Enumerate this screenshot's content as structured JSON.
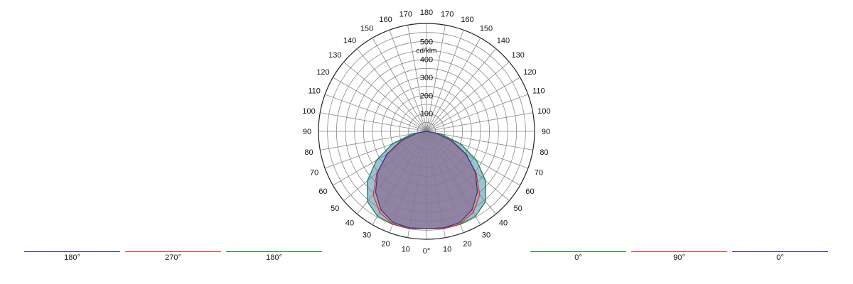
{
  "chart_data": {
    "type": "polar",
    "unit": "cd/klm",
    "radial_ticks": [
      100,
      200,
      300,
      400,
      500
    ],
    "rmax": 600,
    "angle_tick_labels": {
      "left": [
        "0°",
        "10",
        "20",
        "30",
        "40",
        "50",
        "60",
        "70",
        "80",
        "90",
        "100",
        "110",
        "120",
        "130",
        "140",
        "150",
        "160",
        "170",
        "180"
      ],
      "right": [
        "10",
        "20",
        "30",
        "40",
        "50",
        "60",
        "70",
        "80",
        "90",
        "100",
        "110",
        "120",
        "130",
        "140",
        "150",
        "160",
        "170"
      ]
    },
    "series": [
      {
        "color": "#4a8fb0",
        "stroke": "#1a7a3a",
        "profile": [
          [
            0,
            540
          ],
          [
            10,
            545
          ],
          [
            20,
            550
          ],
          [
            30,
            545
          ],
          [
            40,
            510
          ],
          [
            50,
            430
          ],
          [
            60,
            320
          ],
          [
            70,
            200
          ],
          [
            80,
            80
          ],
          [
            90,
            0
          ]
        ]
      },
      {
        "color": "#e08a8a",
        "stroke": "#e03030",
        "profile": [
          [
            0,
            540
          ],
          [
            10,
            550
          ],
          [
            20,
            548
          ],
          [
            30,
            520
          ],
          [
            40,
            460
          ],
          [
            50,
            360
          ],
          [
            60,
            250
          ],
          [
            70,
            135
          ],
          [
            80,
            50
          ],
          [
            90,
            0
          ]
        ]
      },
      {
        "color": "#6a6a9a",
        "stroke": "#2a3a8a",
        "profile": [
          [
            0,
            540
          ],
          [
            10,
            545
          ],
          [
            20,
            540
          ],
          [
            30,
            505
          ],
          [
            40,
            440
          ],
          [
            50,
            355
          ],
          [
            60,
            255
          ],
          [
            70,
            150
          ],
          [
            80,
            55
          ],
          [
            90,
            0
          ]
        ]
      }
    ]
  },
  "legend_left": [
    {
      "label": "180°",
      "color": "#2a2aa0"
    },
    {
      "label": "270°",
      "color": "#e03030"
    },
    {
      "label": "180°",
      "color": "#1a8a3a"
    }
  ],
  "legend_right": [
    {
      "label": "0°",
      "color": "#1a8a3a"
    },
    {
      "label": "90°",
      "color": "#e03030"
    },
    {
      "label": "0°",
      "color": "#2a2aa0"
    }
  ]
}
